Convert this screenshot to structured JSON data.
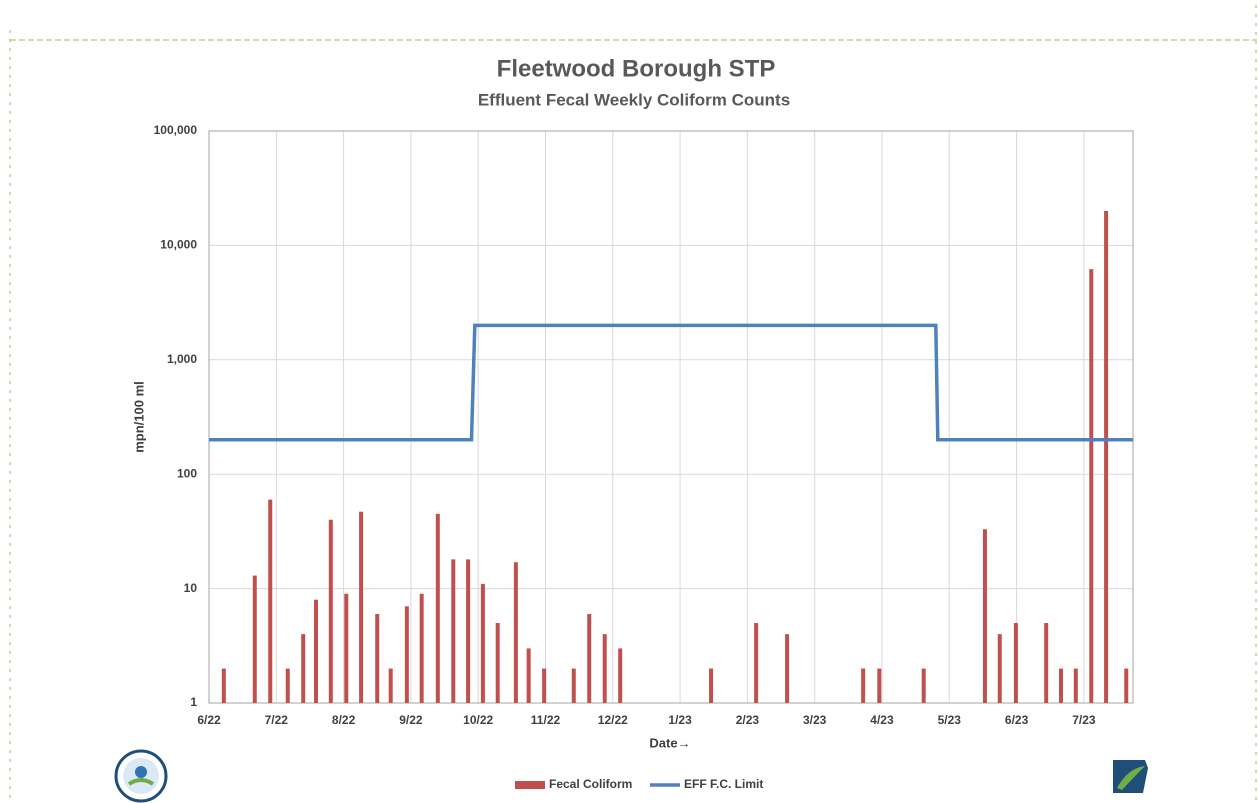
{
  "chart_data": {
    "type": "bar",
    "title": "Fleetwood Borough STP",
    "subtitle": "Effluent Fecal Weekly Coliform Counts",
    "x_label": "Date→",
    "y_label": "mpn/100 ml",
    "log_y": true,
    "grid": true,
    "legend": "bottom",
    "xlim": [
      0,
      13.73
    ],
    "xticks": [
      {
        "value": 0,
        "label": "6/22"
      },
      {
        "value": 1,
        "label": "7/22"
      },
      {
        "value": 2,
        "label": "8/22"
      },
      {
        "value": 3,
        "label": "9/22"
      },
      {
        "value": 4,
        "label": "10/22"
      },
      {
        "value": 5,
        "label": "11/22"
      },
      {
        "value": 6,
        "label": "12/22"
      },
      {
        "value": 7,
        "label": "1/23"
      },
      {
        "value": 8,
        "label": "2/23"
      },
      {
        "value": 9,
        "label": "3/23"
      },
      {
        "value": 10,
        "label": "4/23"
      },
      {
        "value": 11,
        "label": "5/23"
      },
      {
        "value": 12,
        "label": "6/23"
      },
      {
        "value": 13,
        "label": "7/23"
      }
    ],
    "ylim": [
      1,
      100000
    ],
    "yticks": [
      1,
      10,
      100,
      {
        "value": 1000,
        "label": "1,000"
      },
      {
        "value": 10000,
        "label": "10,000"
      },
      {
        "value": 100000,
        "label": "100,000"
      }
    ],
    "series": [
      {
        "name": "Fecal Coliform",
        "type": "bar",
        "color": "#c0504d",
        "x": [
          0.22,
          0.68,
          0.91,
          1.17,
          1.4,
          1.59,
          1.81,
          2.04,
          2.26,
          2.5,
          2.7,
          2.94,
          3.16,
          3.4,
          3.63,
          3.85,
          4.07,
          4.29,
          4.56,
          4.75,
          4.98,
          5.42,
          5.65,
          5.88,
          6.11,
          7.46,
          8.13,
          8.59,
          9.72,
          9.96,
          10.62,
          11.53,
          11.75,
          11.99,
          12.44,
          12.66,
          12.88,
          13.11,
          13.33,
          13.63
        ],
        "values": [
          2,
          13,
          60,
          2,
          4,
          8,
          40,
          9,
          47,
          6,
          2,
          7,
          9,
          45,
          18,
          18,
          11,
          5,
          17,
          3,
          2,
          2,
          6,
          4,
          3,
          2,
          5,
          4,
          2,
          2,
          2,
          33,
          4,
          5,
          5,
          2,
          2,
          6200,
          20000,
          2
        ]
      },
      {
        "name": "EFF F.C. Limit",
        "type": "line",
        "color": "#4f81bd",
        "x": [
          0,
          3.9,
          3.95,
          10.8,
          10.83,
          13.73
        ],
        "values": [
          200,
          200,
          2000,
          2000,
          200,
          200
        ]
      }
    ]
  }
}
